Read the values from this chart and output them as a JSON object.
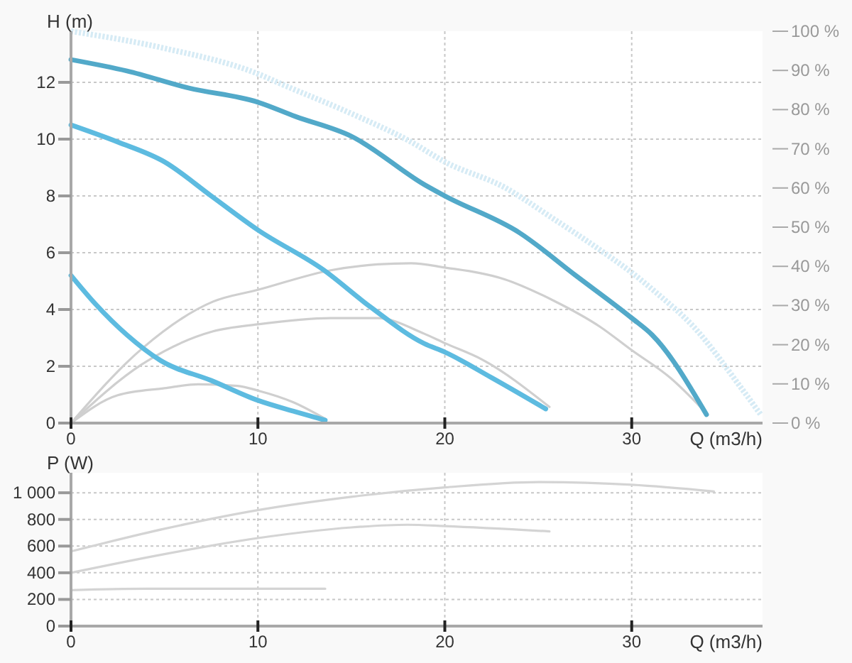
{
  "chart_data": [
    {
      "type": "line",
      "xlabel": "Q (m3/h)",
      "ylabel": "H (m)",
      "xlim": [
        0,
        37
      ],
      "xticks": [
        0,
        10,
        20,
        30
      ],
      "ylim": [
        0,
        13.8
      ],
      "yticks": [
        0,
        2,
        4,
        6,
        8,
        10,
        12
      ],
      "y2lim": [
        0,
        100
      ],
      "y2ticks": [
        {
          "value": 0,
          "label": "0 %"
        },
        {
          "value": 10,
          "label": "10 %"
        },
        {
          "value": 20,
          "label": "20 %"
        },
        {
          "value": 30,
          "label": "30 %"
        },
        {
          "value": 40,
          "label": "40 %"
        },
        {
          "value": 50,
          "label": "50 %"
        },
        {
          "value": 60,
          "label": "60 %"
        },
        {
          "value": 70,
          "label": "70 %"
        },
        {
          "value": 80,
          "label": "80 %"
        },
        {
          "value": 90,
          "label": "90 %"
        },
        {
          "value": 100,
          "label": "100 %"
        }
      ],
      "grid": true,
      "series": [
        {
          "color": "#d6ebf5",
          "line_style": "dotted",
          "x": [
            0,
            5,
            10,
            11.4,
            15,
            18.2,
            20,
            23.2,
            25.8,
            28.3,
            30,
            31.3,
            33.3,
            35.9,
            36.9
          ],
          "values": [
            13.8,
            13.2,
            12.3,
            11.9,
            10.9,
            9.9,
            9.2,
            8.3,
            7.2,
            6.1,
            5.3,
            4.6,
            3.4,
            1.2,
            0.3
          ]
        },
        {
          "color": "#cfcfcf",
          "axis": "y2",
          "x": [
            0,
            3.8,
            7.6,
            10,
            13.9,
            16.4,
            18.2,
            20,
            23.2,
            25.8,
            28.3,
            30,
            32.1,
            33.8
          ],
          "values": [
            0,
            19,
            31,
            34,
            39,
            40.5,
            40.8,
            39.7,
            36.7,
            31.3,
            24.6,
            18.6,
            11.4,
            3.5
          ]
        },
        {
          "color": "#cfcfcf",
          "axis": "y2",
          "x": [
            0,
            3.8,
            7.6,
            10,
            13.9,
            16.4,
            18.9,
            20,
            22,
            25.6
          ],
          "values": [
            0,
            15,
            23.4,
            25.2,
            26.8,
            26.8,
            22.8,
            20.4,
            16.2,
            4.1
          ]
        },
        {
          "color": "#cfcfcf",
          "axis": "y2",
          "x": [
            0,
            2.5,
            5,
            6.8,
            8.9,
            10,
            11.9,
            13.6
          ],
          "values": [
            0,
            7.1,
            8.9,
            9.9,
            9.5,
            8.3,
            5.3,
            1.1
          ]
        },
        {
          "color": "#52a9c9",
          "x": [
            0,
            3,
            6.3,
            10,
            12,
            15,
            18.9,
            20,
            24,
            27,
            30,
            31.1,
            34
          ],
          "values": [
            12.8,
            12.4,
            11.8,
            11.3,
            10.8,
            10.1,
            8.4,
            8.0,
            6.7,
            5.2,
            3.7,
            3.1,
            0.3
          ]
        },
        {
          "color": "#5dbbe0",
          "x": [
            0,
            2.5,
            5,
            7.5,
            10,
            13.5,
            16,
            18.9,
            20,
            22.5,
            25.4
          ],
          "values": [
            10.5,
            9.9,
            9.2,
            8.0,
            6.8,
            5.4,
            4.1,
            2.8,
            2.5,
            1.6,
            0.5
          ]
        },
        {
          "color": "#5dbbe0",
          "x": [
            0,
            1.3,
            3,
            4.8,
            7.5,
            10,
            12,
            13.6
          ],
          "values": [
            5.2,
            4.2,
            3.1,
            2.2,
            1.5,
            0.8,
            0.4,
            0.1
          ]
        }
      ]
    },
    {
      "type": "line",
      "xlabel": "Q (m3/h)",
      "ylabel": "P (W)",
      "xlim": [
        0,
        37
      ],
      "xticks": [
        0,
        10,
        20,
        30
      ],
      "ylim": [
        0,
        1150
      ],
      "yticks": [
        0,
        200,
        400,
        600,
        800,
        {
          "value": 1000,
          "label": "1 000"
        }
      ],
      "grid": true,
      "series": [
        {
          "color": "#d4d4d4",
          "x": [
            0,
            5,
            10,
            15,
            20,
            25,
            30,
            34.4
          ],
          "values": [
            560,
            730,
            870,
            970,
            1040,
            1080,
            1060,
            1010
          ]
        },
        {
          "color": "#d4d4d4",
          "x": [
            0,
            5,
            10,
            15,
            18,
            20,
            25.6
          ],
          "values": [
            400,
            540,
            660,
            740,
            760,
            750,
            710
          ]
        },
        {
          "color": "#d4d4d4",
          "x": [
            0,
            4,
            8,
            13.6
          ],
          "values": [
            270,
            280,
            280,
            280
          ]
        }
      ]
    }
  ]
}
